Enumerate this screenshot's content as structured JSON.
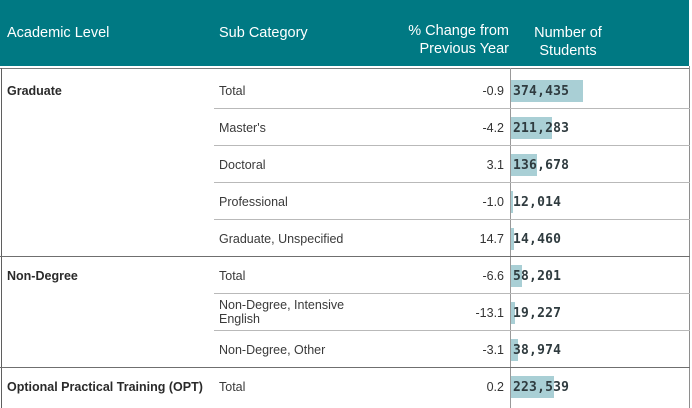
{
  "header": {
    "academic_level": "Academic Level",
    "sub_category": "Sub Category",
    "change_line1": "% Change from",
    "change_line2": "Previous Year",
    "count_line1": "Number of",
    "count_line2": "Students"
  },
  "chart_data": {
    "type": "table",
    "columns": [
      "Academic Level",
      "Sub Category",
      "% Change from Previous Year",
      "Number of Students"
    ],
    "bar_max": 374435,
    "rows": [
      {
        "level": "Graduate",
        "sub": "Total",
        "change": "-0.9",
        "count": "374,435",
        "value": 374435
      },
      {
        "level": "",
        "sub": "Master's",
        "change": "-4.2",
        "count": "211,283",
        "value": 211283
      },
      {
        "level": "",
        "sub": "Doctoral",
        "change": "3.1",
        "count": "136,678",
        "value": 136678
      },
      {
        "level": "",
        "sub": "Professional",
        "change": "-1.0",
        "count": "12,014",
        "value": 12014
      },
      {
        "level": "",
        "sub": "Graduate, Unspecified",
        "change": "14.7",
        "count": "14,460",
        "value": 14460
      },
      {
        "level": "Non-Degree",
        "sub": "Total",
        "change": "-6.6",
        "count": "58,201",
        "value": 58201
      },
      {
        "level": "",
        "sub": "Non-Degree, Intensive English",
        "change": "-13.1",
        "count": "19,227",
        "value": 19227
      },
      {
        "level": "",
        "sub": "Non-Degree, Other",
        "change": "-3.1",
        "count": "38,974",
        "value": 38974
      },
      {
        "level": "Optional Practical Training (OPT)",
        "sub": "Total",
        "change": "0.2",
        "count": "223,539",
        "value": 223539
      }
    ]
  }
}
